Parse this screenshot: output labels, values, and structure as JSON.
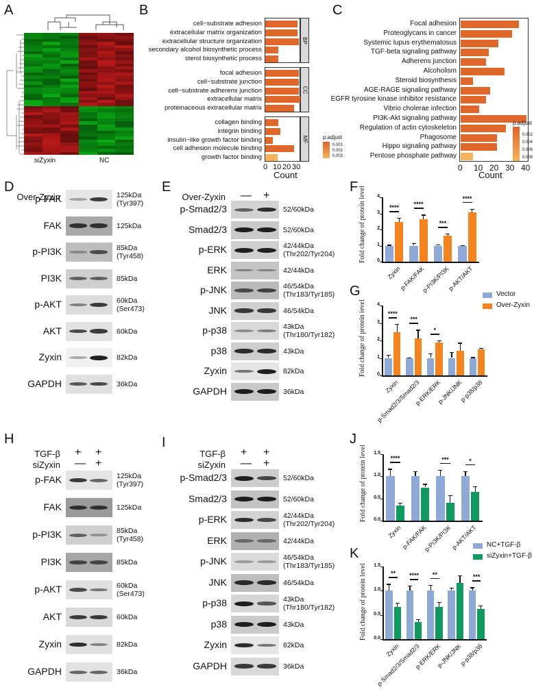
{
  "figure": {
    "panels": [
      "A",
      "B",
      "C",
      "D",
      "E",
      "F",
      "G",
      "H",
      "I",
      "J",
      "K"
    ]
  },
  "panelA": {
    "letter": "A",
    "type": "heatmap",
    "groups": [
      "siZyxin",
      "NC"
    ]
  },
  "panelB": {
    "letter": "B",
    "xlabel": "Count",
    "xticks": [
      "0",
      "10",
      "20",
      "30"
    ],
    "legend_title": "p.adjust",
    "legend_values": [
      "0.001",
      "0.002",
      "0.003"
    ],
    "facets": [
      {
        "name": "BP",
        "terms": [
          {
            "label": "cell−substrate adhesion",
            "count": 35
          },
          {
            "label": "extracellular matrix organization",
            "count": 35
          },
          {
            "label": "extracellular structure organization",
            "count": 36
          },
          {
            "label": "secondary alcohol biosynthetic process",
            "count": 14
          },
          {
            "label": "sterol biosynthetic process",
            "count": 14
          }
        ]
      },
      {
        "name": "CC",
        "terms": [
          {
            "label": "focal adhesion",
            "count": 36
          },
          {
            "label": "cell−substrate junction",
            "count": 36
          },
          {
            "label": "cell−substrate adherens junction",
            "count": 36
          },
          {
            "label": "extracellular matrix",
            "count": 38
          },
          {
            "label": "proteinaceous extracellular matrix",
            "count": 31
          }
        ]
      },
      {
        "name": "MF",
        "terms": [
          {
            "label": "collagen binding",
            "count": 14
          },
          {
            "label": "integrin binding",
            "count": 16
          },
          {
            "label": "insulin−like growth factor binding",
            "count": 8
          },
          {
            "label": "cell adhesion molecule binding",
            "count": 31
          },
          {
            "label": "growth factor binding",
            "count": 13
          }
        ]
      }
    ]
  },
  "panelC": {
    "letter": "C",
    "xlabel": "Count",
    "xticks": [
      "0",
      "10",
      "20",
      "30",
      "40"
    ],
    "legend_title": "p.adjust",
    "legend_values": [
      "0.002",
      "0.004",
      "0.006",
      "0.008"
    ],
    "terms": [
      {
        "label": "Focal adhesion",
        "count": 37
      },
      {
        "label": "Proteoglycans in cancer",
        "count": 33
      },
      {
        "label": "Systemic lupus erythematosus",
        "count": 24
      },
      {
        "label": "TGF-beta signaling pathway",
        "count": 18
      },
      {
        "label": "Adherens junction",
        "count": 16
      },
      {
        "label": "Alcoholism",
        "count": 28
      },
      {
        "label": "Steroid biosynthesis",
        "count": 8
      },
      {
        "label": "AGE-RAGE signaling pathway",
        "count": 19
      },
      {
        "label": "EGFR tyrosine kinase inhibitor resistance",
        "count": 16
      },
      {
        "label": "Vibrio cholerae infection",
        "count": 12
      },
      {
        "label": "PI3K-Akt signaling pathway",
        "count": 42
      },
      {
        "label": "Regulation of actin cytoskeleton",
        "count": 29
      },
      {
        "label": "Phagosome",
        "count": 23
      },
      {
        "label": "Hippo signaling pathway",
        "count": 23
      },
      {
        "label": "Pentose phosphate pathway",
        "count": 8,
        "light": true
      }
    ]
  },
  "panelD": {
    "letter": "D",
    "condition": "Over-Zyxin",
    "signs": [
      "—",
      "+"
    ],
    "blots": [
      {
        "name": "p-FAK",
        "kda": "125kDa\n(Tyr397)"
      },
      {
        "name": "FAK",
        "kda": "125kDa"
      },
      {
        "name": "p-PI3K",
        "kda": "85kDa\n(Tyr458)"
      },
      {
        "name": "PI3K",
        "kda": "85kDa"
      },
      {
        "name": "p-AKT",
        "kda": "60kDa\n(Ser473)"
      },
      {
        "name": "AKT",
        "kda": "60kDa"
      },
      {
        "name": "Zyxin",
        "kda": "82kDa"
      },
      {
        "name": "GAPDH",
        "kda": "36kDa"
      }
    ]
  },
  "panelE": {
    "letter": "E",
    "condition": "Over-Zyxin",
    "signs": [
      "—",
      "+"
    ],
    "blots": [
      {
        "name": "p-Smad2/3",
        "kda": "52/60kDa"
      },
      {
        "name": "Smad2/3",
        "kda": "52/60kDa"
      },
      {
        "name": "p-ERK",
        "kda": "42/44kDa\n(Thr202/Tyr204)"
      },
      {
        "name": "ERK",
        "kda": "42/44kDa"
      },
      {
        "name": "p-JNK",
        "kda": "46/54kDa\n(Thr183/Tyr185)"
      },
      {
        "name": "JNK",
        "kda": "46/54kDa"
      },
      {
        "name": "p-p38",
        "kda": "43kDa\n(Thr180/Tyr182)"
      },
      {
        "name": "p38",
        "kda": "43kDa"
      },
      {
        "name": "Zyxin",
        "kda": "82kDa"
      },
      {
        "name": "GAPDH",
        "kda": "36kDa"
      }
    ]
  },
  "panelH": {
    "letter": "H",
    "conditions": [
      {
        "label": "TGF-β",
        "signs": [
          "+",
          "+"
        ]
      },
      {
        "label": "siZyxin",
        "signs": [
          "—",
          "+"
        ]
      }
    ],
    "blots": [
      {
        "name": "p-FAK",
        "kda": "125kDa\n(Tyr397)"
      },
      {
        "name": "FAK",
        "kda": "125kDa"
      },
      {
        "name": "p-PI3K",
        "kda": "85kDa\n(Tyr458)"
      },
      {
        "name": "PI3K",
        "kda": "85kDa"
      },
      {
        "name": "p-AKT",
        "kda": "60kDa\n(Ser473)"
      },
      {
        "name": "AKT",
        "kda": "60kDa"
      },
      {
        "name": "Zyxin",
        "kda": "82kDa"
      },
      {
        "name": "GAPDH",
        "kda": "36kDa"
      }
    ]
  },
  "panelI": {
    "letter": "I",
    "conditions": [
      {
        "label": "TGF-β",
        "signs": [
          "+",
          "+"
        ]
      },
      {
        "label": "siZyxin",
        "signs": [
          "—",
          "+"
        ]
      }
    ],
    "blots": [
      {
        "name": "p-Smad2/3",
        "kda": "52/60kDa"
      },
      {
        "name": "Smad2/3",
        "kda": "52/60kDa"
      },
      {
        "name": "p-ERK",
        "kda": "42/44kDa\n(Thr202/Tyr204)"
      },
      {
        "name": "ERK",
        "kda": "42/44kDa"
      },
      {
        "name": "p-JNK",
        "kda": "46/54kDa\n(Thr183/Tyr185)"
      },
      {
        "name": "JNK",
        "kda": "46/54kDa"
      },
      {
        "name": "p-p38",
        "kda": "43kDa\n(Thr180/Tyr182)"
      },
      {
        "name": "p38",
        "kda": "43kDa"
      },
      {
        "name": "Zyxin",
        "kda": "82kDa"
      },
      {
        "name": "GAPDH",
        "kda": "36kDa"
      }
    ]
  },
  "chart_data": [
    {
      "panel": "B",
      "type": "bar",
      "orientation": "horizontal",
      "title": "",
      "xlabel": "Count",
      "ylabel": "",
      "categories": [
        "cell-substrate adhesion",
        "extracellular matrix organization",
        "extracellular structure organization",
        "secondary alcohol biosynthetic process",
        "sterol biosynthetic process",
        "focal adhesion",
        "cell-substrate junction",
        "cell-substrate adherens junction",
        "extracellular matrix",
        "proteinaceous extracellular matrix",
        "collagen binding",
        "integrin binding",
        "insulin-like growth factor binding",
        "cell adhesion molecule binding",
        "growth factor binding"
      ],
      "facets": [
        "BP",
        "BP",
        "BP",
        "BP",
        "BP",
        "CC",
        "CC",
        "CC",
        "CC",
        "CC",
        "MF",
        "MF",
        "MF",
        "MF",
        "MF"
      ],
      "values": [
        35,
        35,
        36,
        14,
        14,
        36,
        36,
        36,
        38,
        31,
        14,
        16,
        8,
        31,
        13
      ],
      "xlim": [
        0,
        38
      ],
      "legend": "p.adjust (0.001-0.003)"
    },
    {
      "panel": "C",
      "type": "bar",
      "orientation": "horizontal",
      "title": "",
      "xlabel": "Count",
      "ylabel": "",
      "categories": [
        "Focal adhesion",
        "Proteoglycans in cancer",
        "Systemic lupus erythematosus",
        "TGF-beta signaling pathway",
        "Adherens junction",
        "Alcoholism",
        "Steroid biosynthesis",
        "AGE-RAGE signaling pathway",
        "EGFR tyrosine kinase inhibitor resistance",
        "Vibrio cholerae infection",
        "PI3K-Akt signaling pathway",
        "Regulation of actin cytoskeleton",
        "Phagosome",
        "Hippo signaling pathway",
        "Pentose phosphate pathway"
      ],
      "values": [
        37,
        33,
        24,
        18,
        16,
        28,
        8,
        19,
        16,
        12,
        42,
        29,
        23,
        23,
        8
      ],
      "xlim": [
        0,
        43
      ],
      "legend": "p.adjust (0.002-0.008)"
    },
    {
      "panel": "F",
      "type": "bar",
      "ylabel": "Fold change of protein level",
      "ylim": [
        0,
        4
      ],
      "yticks": [
        "0",
        "1",
        "2",
        "3",
        "4"
      ],
      "categories": [
        "Zyxin",
        "p-FAK/FAK",
        "p-PI3K/PI3K",
        "p-AKT/AKT"
      ],
      "series": [
        {
          "name": "Vector",
          "color": "#8fa9d6",
          "values": [
            1.0,
            1.0,
            1.0,
            1.0
          ],
          "errors": [
            0.05,
            0.15,
            0.06,
            0.04
          ]
        },
        {
          "name": "Over-Zyxin",
          "color": "#f5841f",
          "values": [
            2.45,
            2.65,
            1.62,
            3.07
          ],
          "errors": [
            0.27,
            0.27,
            0.12,
            0.22
          ]
        }
      ],
      "significance": [
        "****",
        "****",
        "***",
        "****"
      ]
    },
    {
      "panel": "G",
      "type": "bar",
      "ylabel": "Fold change of protein level",
      "ylim": [
        0,
        4
      ],
      "yticks": [
        "0",
        "1",
        "2",
        "3",
        "4"
      ],
      "categories": [
        "Zyxin",
        "p-Smad2/3/Smad2/3",
        "p-ERK/ERK",
        "p-JNK/JNK",
        "p-p38/p38"
      ],
      "series": [
        {
          "name": "Vector",
          "color": "#8fa9d6",
          "values": [
            1.0,
            1.0,
            1.0,
            1.0,
            1.0
          ],
          "errors": [
            0.18,
            0.03,
            0.26,
            0.33,
            0.04
          ]
        },
        {
          "name": "Over-Zyxin",
          "color": "#f5841f",
          "values": [
            2.48,
            2.13,
            1.9,
            1.42,
            1.48
          ],
          "errors": [
            0.45,
            0.48,
            0.1,
            0.45,
            0.1
          ]
        }
      ],
      "significance": [
        "****",
        "***",
        "*",
        "",
        ""
      ],
      "legend": [
        "Vector",
        "Over-Zyxin"
      ]
    },
    {
      "panel": "J",
      "type": "bar",
      "ylabel": "Fold change of protein level",
      "ylim": [
        0,
        1.5
      ],
      "yticks": [
        "0.0",
        "0.5",
        "1.0",
        "1.5"
      ],
      "categories": [
        "Zyxin",
        "p-FAK/FAK",
        "p-PI3K/PI3K",
        "p-AKT/AKT"
      ],
      "series": [
        {
          "name": "NC+TGF-β",
          "color": "#8fa9d6",
          "values": [
            1.0,
            1.0,
            1.0,
            1.0
          ],
          "errors": [
            0.17,
            0.11,
            0.15,
            0.12
          ]
        },
        {
          "name": "siZyxin+TGF-β",
          "color": "#119a5f",
          "values": [
            0.34,
            0.75,
            0.4,
            0.65
          ],
          "errors": [
            0.06,
            0.08,
            0.17,
            0.12
          ]
        }
      ],
      "significance": [
        "****",
        "",
        "***",
        "*"
      ]
    },
    {
      "panel": "K",
      "type": "bar",
      "ylabel": "Fold change of protein level",
      "ylim": [
        0,
        1.5
      ],
      "yticks": [
        "0.0",
        "0.5",
        "1.0",
        "1.5"
      ],
      "categories": [
        "Zyxin",
        "p-Smad2/3/Smad2/3",
        "p-ERK/ERK",
        "p-JNK/JNK",
        "p-p38/p38"
      ],
      "series": [
        {
          "name": "NC+TGF-β",
          "color": "#8fa9d6",
          "values": [
            1.0,
            1.0,
            1.0,
            1.0,
            1.0
          ],
          "errors": [
            0.14,
            0.1,
            0.12,
            0.06,
            0.07
          ]
        },
        {
          "name": "siZyxin+TGF-β",
          "color": "#119a5f",
          "values": [
            0.67,
            0.36,
            0.67,
            1.16,
            0.62
          ],
          "errors": [
            0.08,
            0.05,
            0.09,
            0.16,
            0.08
          ]
        }
      ],
      "significance": [
        "**",
        "****",
        "**",
        "",
        "***"
      ],
      "legend": [
        "NC+TGF-β",
        "siZyxin+TGF-β"
      ]
    }
  ],
  "colors": {
    "go_bar": "#e0672a",
    "go_bar_light": "#f5b45c",
    "vector": "#8fa9d6",
    "over_zyxin": "#f5841f",
    "si_zyxin": "#119a5f",
    "heat_green": "#1aa01a",
    "heat_red": "#b01e1e"
  }
}
